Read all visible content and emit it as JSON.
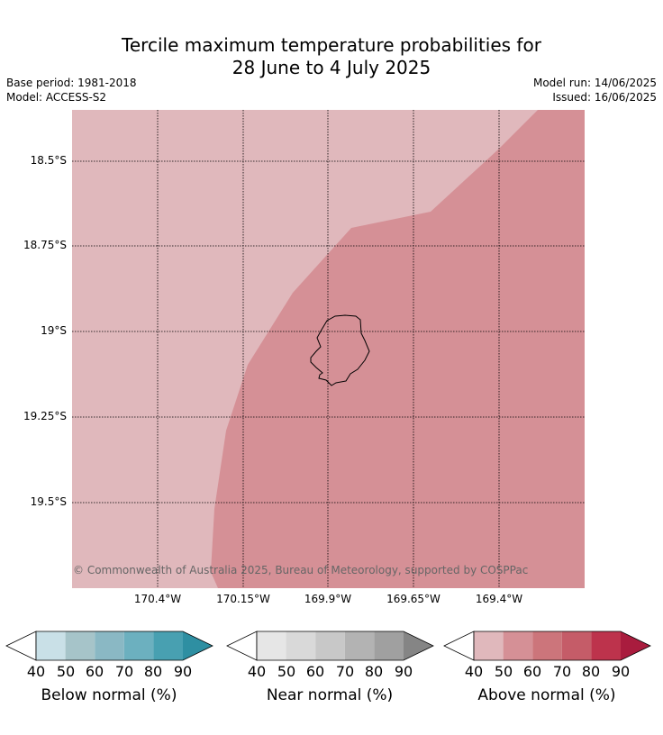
{
  "header": {
    "title_line1": "Tercile maximum temperature probabilities for",
    "title_line2": "28 June to 4 July 2025",
    "base_period": "Base period: 1981-2018",
    "model": "Model: ACCESS-S2",
    "model_run": "Model run: 14/06/2025",
    "issued": "Issued: 16/06/2025"
  },
  "map": {
    "lat_labels": [
      "18.5°S",
      "18.75°S",
      "19°S",
      "19.25°S",
      "19.5°S"
    ],
    "lon_labels": [
      "170.4°W",
      "170.15°W",
      "169.9°W",
      "169.65°W",
      "169.4°W"
    ],
    "copyright": "© Commonwealth of Australia 2025, Bureau of Meteorology, supported by COSPPac",
    "colors": {
      "above_50": "#e0b8bc",
      "above_60": "#d59096"
    }
  },
  "colorbars": [
    {
      "label": "Below normal (%)",
      "ticks": [
        "40",
        "50",
        "60",
        "70",
        "80",
        "90"
      ],
      "colors": [
        "#c9e0e7",
        "#a6c4c9",
        "#8ab8c4",
        "#6cb0bf",
        "#48a0b1",
        "#2e8fa2"
      ]
    },
    {
      "label": "Near normal (%)",
      "ticks": [
        "40",
        "50",
        "60",
        "70",
        "80",
        "90"
      ],
      "colors": [
        "#e6e6e6",
        "#d9d9d9",
        "#c8c8c8",
        "#b3b3b3",
        "#a0a0a0",
        "#858585"
      ]
    },
    {
      "label": "Above normal (%)",
      "ticks": [
        "40",
        "50",
        "60",
        "70",
        "80",
        "90"
      ],
      "colors": [
        "#e0b8bc",
        "#d59096",
        "#cc757b",
        "#c55c68",
        "#bd334c",
        "#a91c3e"
      ]
    }
  ]
}
